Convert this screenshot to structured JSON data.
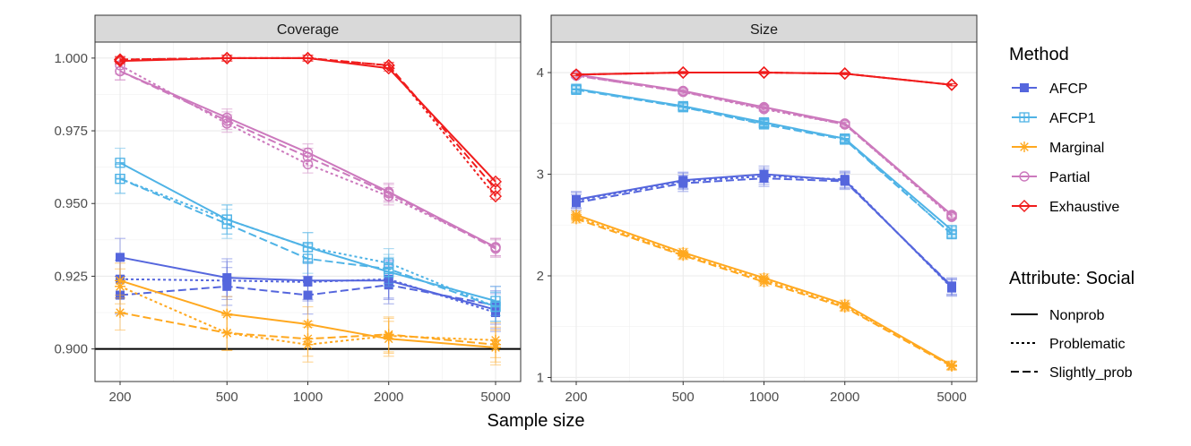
{
  "chart_data": {
    "type": "line",
    "xlabel": "Sample size",
    "x_scale": "log10",
    "x": [
      200,
      500,
      1000,
      2000,
      5000
    ],
    "x_tick_labels": [
      "200",
      "500",
      "1000",
      "2000",
      "5000"
    ],
    "colors": {
      "AFCP": "#5566dd",
      "AFCP1": "#4fb3e6",
      "Marginal": "#ffa81f",
      "Partial": "#cc79bd",
      "Exhaustive": "#f01c1c"
    },
    "legend": {
      "method_title": "Method",
      "methods": [
        {
          "name": "AFCP",
          "marker": "square-filled"
        },
        {
          "name": "AFCP1",
          "marker": "square-cross"
        },
        {
          "name": "Marginal",
          "marker": "asterisk"
        },
        {
          "name": "Partial",
          "marker": "circle-open"
        },
        {
          "name": "Exhaustive",
          "marker": "diamond-open"
        }
      ],
      "attribute_title": "Attribute: Social",
      "attributes": [
        {
          "name": "Nonprob",
          "linetype": "solid"
        },
        {
          "name": "Problematic",
          "linetype": "dotted"
        },
        {
          "name": "Slightly_prob",
          "linetype": "dashed"
        }
      ]
    },
    "panels": [
      {
        "title": "Coverage",
        "ylim": [
          0.8888,
          1.0055
        ],
        "y_ticks": [
          0.9,
          0.925,
          0.95,
          0.975,
          1.0
        ],
        "y_tick_labels": [
          "0.900",
          "0.925",
          "0.950",
          "0.975",
          "1.000"
        ],
        "hline": 0.9,
        "series": [
          {
            "method": "AFCP",
            "attribute": "Nonprob",
            "values": [
              0.9315,
              0.9245,
              0.9235,
              0.9235,
              0.9135
            ],
            "err": 0.0065
          },
          {
            "method": "AFCP",
            "attribute": "Problematic",
            "values": [
              0.924,
              0.9235,
              0.923,
              0.924,
              0.9125
            ],
            "err": 0.0065
          },
          {
            "method": "AFCP",
            "attribute": "Slightly_prob",
            "values": [
              0.9185,
              0.9215,
              0.9185,
              0.922,
              0.915
            ],
            "err": 0.0065
          },
          {
            "method": "AFCP1",
            "attribute": "Nonprob",
            "values": [
              0.964,
              0.9445,
              0.935,
              0.9265,
              0.9165
            ],
            "err": 0.005
          },
          {
            "method": "AFCP1",
            "attribute": "Problematic",
            "values": [
              0.9585,
              0.9445,
              0.935,
              0.9295,
              0.9145
            ],
            "err": 0.005
          },
          {
            "method": "AFCP1",
            "attribute": "Slightly_prob",
            "values": [
              0.9585,
              0.943,
              0.931,
              0.9275,
              0.9145
            ],
            "err": 0.005
          },
          {
            "method": "Marginal",
            "attribute": "Nonprob",
            "values": [
              0.9235,
              0.912,
              0.9085,
              0.9035,
              0.9005
            ],
            "err": 0.006
          },
          {
            "method": "Marginal",
            "attribute": "Problematic",
            "values": [
              0.9215,
              0.9055,
              0.9015,
              0.9045,
              0.903
            ],
            "err": 0.006
          },
          {
            "method": "Marginal",
            "attribute": "Slightly_prob",
            "values": [
              0.9125,
              0.9055,
              0.9035,
              0.905,
              0.9015
            ],
            "err": 0.006
          },
          {
            "method": "Partial",
            "attribute": "Nonprob",
            "values": [
              0.9955,
              0.9795,
              0.9675,
              0.954,
              0.935
            ],
            "err": 0.003
          },
          {
            "method": "Partial",
            "attribute": "Problematic",
            "values": [
              0.9975,
              0.9775,
              0.9635,
              0.9525,
              0.935
            ],
            "err": 0.003
          },
          {
            "method": "Partial",
            "attribute": "Slightly_prob",
            "values": [
              0.9955,
              0.9785,
              0.966,
              0.9535,
              0.9345
            ],
            "err": 0.003
          },
          {
            "method": "Exhaustive",
            "attribute": "Nonprob",
            "values": [
              0.999,
              1.0,
              1.0,
              0.9965,
              0.9575
            ],
            "err": 0.001
          },
          {
            "method": "Exhaustive",
            "attribute": "Problematic",
            "values": [
              0.9995,
              1.0,
              1.0,
              0.9975,
              0.9525
            ],
            "err": 0.001
          },
          {
            "method": "Exhaustive",
            "attribute": "Slightly_prob",
            "values": [
              0.9995,
              1.0,
              1.0,
              0.9975,
              0.955
            ],
            "err": 0.001
          }
        ]
      },
      {
        "title": "Size",
        "ylim": [
          0.96,
          4.3
        ],
        "y_ticks": [
          1,
          2,
          3,
          4
        ],
        "y_tick_labels": [
          "1",
          "2",
          "3",
          "4"
        ],
        "series": [
          {
            "method": "AFCP",
            "attribute": "Nonprob",
            "values": [
              2.75,
              2.94,
              3.0,
              2.94,
              1.89
            ],
            "err": 0.08
          },
          {
            "method": "AFCP",
            "attribute": "Problematic",
            "values": [
              2.74,
              2.93,
              2.98,
              2.95,
              1.88
            ],
            "err": 0.08
          },
          {
            "method": "AFCP",
            "attribute": "Slightly_prob",
            "values": [
              2.72,
              2.91,
              2.96,
              2.93,
              1.9
            ],
            "err": 0.08
          },
          {
            "method": "AFCP1",
            "attribute": "Nonprob",
            "values": [
              3.84,
              3.67,
              3.51,
              3.35,
              2.45
            ],
            "err": 0.03
          },
          {
            "method": "AFCP1",
            "attribute": "Problematic",
            "values": [
              3.84,
              3.66,
              3.5,
              3.35,
              2.41
            ],
            "err": 0.03
          },
          {
            "method": "AFCP1",
            "attribute": "Slightly_prob",
            "values": [
              3.83,
              3.66,
              3.49,
              3.34,
              2.41
            ],
            "err": 0.03
          },
          {
            "method": "Marginal",
            "attribute": "Nonprob",
            "values": [
              2.6,
              2.23,
              1.98,
              1.72,
              1.12
            ],
            "err": 0.04
          },
          {
            "method": "Marginal",
            "attribute": "Problematic",
            "values": [
              2.58,
              2.21,
              1.96,
              1.7,
              1.12
            ],
            "err": 0.04
          },
          {
            "method": "Marginal",
            "attribute": "Slightly_prob",
            "values": [
              2.56,
              2.2,
              1.94,
              1.69,
              1.11
            ],
            "err": 0.04
          },
          {
            "method": "Partial",
            "attribute": "Nonprob",
            "values": [
              3.98,
              3.82,
              3.66,
              3.5,
              2.6
            ],
            "err": 0.02
          },
          {
            "method": "Partial",
            "attribute": "Problematic",
            "values": [
              3.97,
              3.81,
              3.64,
              3.49,
              2.58
            ],
            "err": 0.02
          },
          {
            "method": "Partial",
            "attribute": "Slightly_prob",
            "values": [
              3.97,
              3.81,
              3.65,
              3.49,
              2.59
            ],
            "err": 0.02
          },
          {
            "method": "Exhaustive",
            "attribute": "Nonprob",
            "values": [
              3.98,
              4.0,
              4.0,
              3.99,
              3.88
            ],
            "err": 0.01
          },
          {
            "method": "Exhaustive",
            "attribute": "Problematic",
            "values": [
              3.98,
              4.0,
              4.0,
              3.99,
              3.88
            ],
            "err": 0.01
          },
          {
            "method": "Exhaustive",
            "attribute": "Slightly_prob",
            "values": [
              3.98,
              4.0,
              4.0,
              3.99,
              3.88
            ],
            "err": 0.01
          }
        ]
      }
    ]
  }
}
